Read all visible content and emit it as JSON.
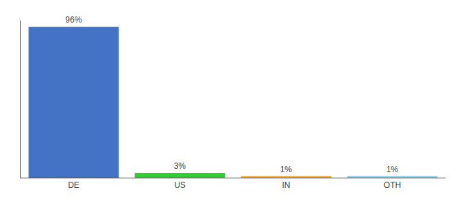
{
  "chart_data": {
    "type": "bar",
    "categories": [
      "DE",
      "US",
      "IN",
      "OTH"
    ],
    "values": [
      96,
      3,
      1,
      1
    ],
    "value_labels": [
      "96%",
      "3%",
      "1%",
      "1%"
    ],
    "colors": [
      "#4472c4",
      "#33cc33",
      "#f5a623",
      "#87ceeb"
    ],
    "ylim": [
      0,
      100
    ],
    "grid": false,
    "tick_labels": "x"
  }
}
